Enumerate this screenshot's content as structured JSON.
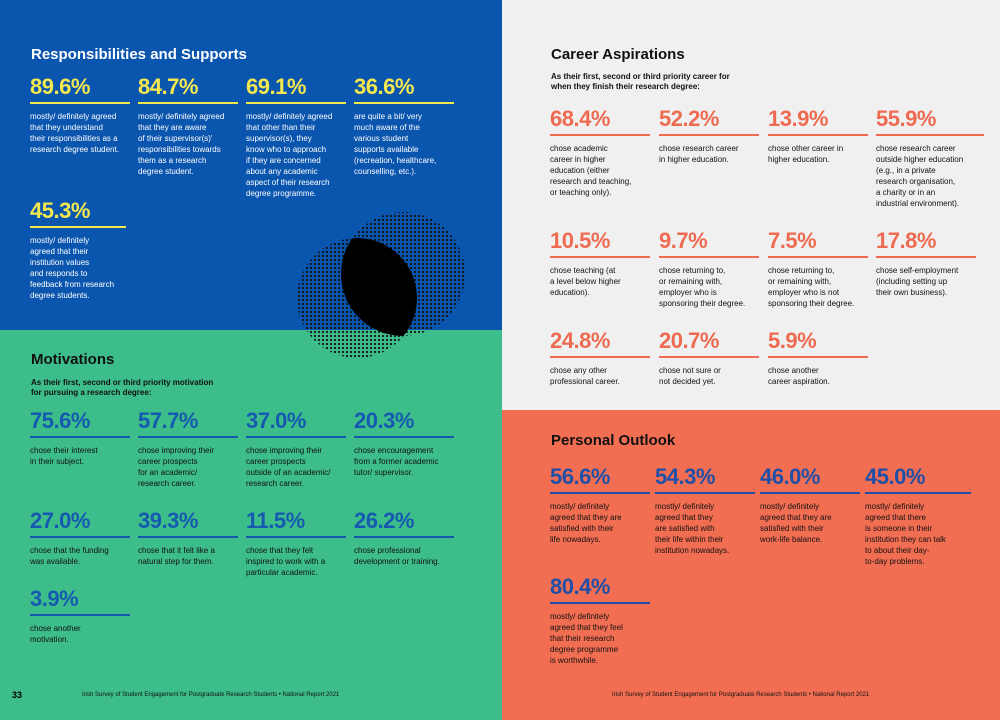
{
  "responsibilities": {
    "title": "Responsibilities and Supports",
    "stats": [
      {
        "value": "89.6%",
        "text": "mostly/ definitely agreed\nthat they understand\ntheir responsibilities as a\nresearch degree student."
      },
      {
        "value": "84.7%",
        "text": "mostly/ definitely agreed\nthat they are aware\nof their supervisor(s)'\nresponsibilities towards\nthem as a research\ndegree student."
      },
      {
        "value": "69.1%",
        "text": "mostly/ definitely agreed\nthat other than their\nsupervisor(s), they\nknow who to approach\nif they are concerned\nabout any academic\naspect of their research\ndegree programme."
      },
      {
        "value": "36.6%",
        "text": "are quite a bit/ very\nmuch aware of the\nvarious student\nsupports available\n(recreation, healthcare,\ncounselling, etc.)."
      },
      {
        "value": "45.3%",
        "text": "mostly/ definitely\nagreed that their\ninstitution values\nand responds to\nfeedback from research\ndegree students."
      }
    ]
  },
  "motivations": {
    "title": "Motivations",
    "subtitle": "As their first, second or third priority motivation\nfor pursuing a research degree:",
    "stats": [
      {
        "value": "75.6%",
        "text": "chose their interest\nin their subject."
      },
      {
        "value": "57.7%",
        "text": "chose improving their\ncareer prospects\nfor an academic/\nresearch career."
      },
      {
        "value": "37.0%",
        "text": "chose improving their\ncareer prospects\noutside of an academic/\nresearch career."
      },
      {
        "value": "20.3%",
        "text": "chose encouragement\nfrom a former academic\ntutor/ supervisor."
      },
      {
        "value": "27.0%",
        "text": "chose that the funding\nwas available."
      },
      {
        "value": "39.3%",
        "text": "chose that it felt like a\nnatural step for them."
      },
      {
        "value": "11.5%",
        "text": "chose that they felt\ninspired to work with a\nparticular academic."
      },
      {
        "value": "26.2%",
        "text": "chose professional\ndevelopment or training."
      },
      {
        "value": "3.9%",
        "text": "chose another\nmotivation."
      }
    ]
  },
  "career": {
    "title": "Career Aspirations",
    "subtitle": "As their first, second or third priority career for\nwhen they finish their research degree:",
    "stats": [
      {
        "value": "68.4%",
        "text": "chose academic\ncareer in higher\neducation (either\nresearch and teaching,\nor teaching only)."
      },
      {
        "value": "52.2%",
        "text": "chose research career\nin higher education."
      },
      {
        "value": "13.9%",
        "text": "chose other career in\nhigher education."
      },
      {
        "value": "55.9%",
        "text": "chose research career\noutside higher education\n(e.g., in a private\nresearch organisation,\na charity or in an\nindustrial environment)."
      },
      {
        "value": "10.5%",
        "text": "chose teaching (at\na level below higher\neducation)."
      },
      {
        "value": "9.7%",
        "text": "chose returning to,\nor remaining with,\nemployer who is\nsponsoring their degree."
      },
      {
        "value": "7.5%",
        "text": "chose returning to,\nor remaining with,\nemployer who is not\nsponsoring their degree."
      },
      {
        "value": "17.8%",
        "text": "chose self-employment\n(including setting up\ntheir own business)."
      },
      {
        "value": "24.8%",
        "text": "chose any other\nprofessional career."
      },
      {
        "value": "20.7%",
        "text": "chose not sure or\nnot decided yet."
      },
      {
        "value": "5.9%",
        "text": "chose another\ncareer aspiration."
      }
    ]
  },
  "outlook": {
    "title": "Personal Outlook",
    "stats": [
      {
        "value": "56.6%",
        "text": "mostly/ definitely\nagreed that they are\nsatisfied with their\nlife nowadays."
      },
      {
        "value": "54.3%",
        "text": "mostly/ definitely\nagreed that they\nare satisfied with\ntheir life within their\ninstitution nowadays."
      },
      {
        "value": "46.0%",
        "text": "mostly/ definitely\nagreed that they are\nsatisfied with their\nwork-life balance."
      },
      {
        "value": "45.0%",
        "text": "mostly/ definitely\nagreed that there\nis someone in their\ninstitution they can talk\nto about their day-\nto-day problems."
      },
      {
        "value": "80.4%",
        "text": "mostly/ definitely\nagreed that they feel\nthat their research\ndegree programme\nis worthwhile."
      }
    ]
  },
  "footer": {
    "page_number": "33",
    "left_text": "Irish Survey of Student Engagement for Postgraduate Research Students • National Report 2021",
    "right_text": "Irish Survey of Student Engagement for Postgraduate Research Students • National Report 2021"
  },
  "colors": {
    "blue_panel": "#0a55ae",
    "green_panel": "#3dbd8a",
    "grey_panel": "#f0f0f0",
    "coral_panel": "#f26e53",
    "yellow_accent": "#f5e84e",
    "coral_accent": "#ee6b51",
    "blue_accent": "#1559b0"
  }
}
